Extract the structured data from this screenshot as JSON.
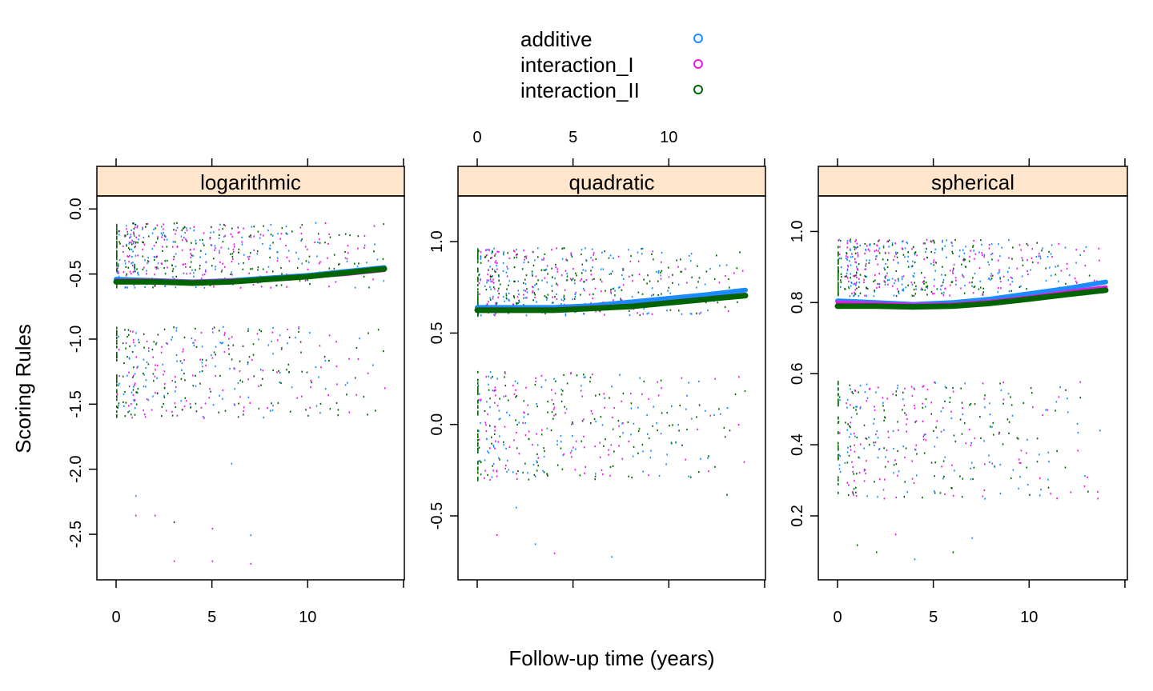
{
  "chart_data": {
    "type": "scatter",
    "layout": "faceted-3-panels",
    "xlabel": "Follow-up time (years)",
    "ylabel": "Scoring Rules",
    "xlim": [
      0,
      14
    ],
    "x_ticks": [
      0,
      5,
      10
    ],
    "x_tick_labels": [
      "0",
      "5",
      "10"
    ],
    "legend": {
      "placement": "top-center",
      "entries": [
        {
          "name": "additive",
          "color": "#1a8cff"
        },
        {
          "name": "interaction_I",
          "color": "#e619e6"
        },
        {
          "name": "interaction_II",
          "color": "#006400"
        }
      ]
    },
    "panels": [
      {
        "label": "logarithmic",
        "ylim": [
          -2.85,
          0.1
        ],
        "y_ticks": [
          0.0,
          -0.5,
          -1.0,
          -1.5,
          -2.0,
          -2.5
        ],
        "y_tick_labels": [
          "0.0",
          "-0.5",
          "-1.0",
          "-1.5",
          "-2.0",
          "-2.5"
        ],
        "point_clusters": [
          {
            "y_range": [
              -0.6,
              -0.1
            ],
            "density": 1.0
          },
          {
            "y_range": [
              -1.6,
              -0.9
            ],
            "density": 0.7
          }
        ],
        "outliers": [
          [
            1,
            -2.2
          ],
          [
            2,
            -2.35
          ],
          [
            3,
            -2.4
          ],
          [
            5,
            -2.45
          ],
          [
            7,
            -2.5
          ],
          [
            3,
            -2.7
          ],
          [
            5,
            -2.7
          ],
          [
            7,
            -2.72
          ],
          [
            1,
            -2.35
          ],
          [
            6,
            -1.95
          ]
        ],
        "series": [
          {
            "name": "additive",
            "x": [
              0,
              2,
              4,
              6,
              8,
              10,
              12,
              14
            ],
            "values": [
              -0.54,
              -0.55,
              -0.56,
              -0.55,
              -0.53,
              -0.51,
              -0.48,
              -0.45
            ]
          },
          {
            "name": "interaction_I",
            "x": [
              0,
              2,
              4,
              6,
              8,
              10,
              12,
              14
            ],
            "values": [
              -0.55,
              -0.55,
              -0.56,
              -0.55,
              -0.54,
              -0.52,
              -0.5,
              -0.47
            ]
          },
          {
            "name": "interaction_II",
            "x": [
              0,
              2,
              4,
              6,
              8,
              10,
              12,
              14
            ],
            "values": [
              -0.56,
              -0.56,
              -0.57,
              -0.56,
              -0.54,
              -0.52,
              -0.49,
              -0.46
            ]
          }
        ]
      },
      {
        "label": "quadratic",
        "ylim": [
          -0.85,
          1.25
        ],
        "y_ticks": [
          1.0,
          0.5,
          0.0,
          -0.5
        ],
        "y_tick_labels": [
          "1.0",
          "0.5",
          "0.0",
          "-0.5"
        ],
        "point_clusters": [
          {
            "y_range": [
              0.6,
              0.97
            ],
            "density": 1.0
          },
          {
            "y_range": [
              -0.3,
              0.3
            ],
            "density": 0.7
          }
        ],
        "outliers": [
          [
            1,
            -0.6
          ],
          [
            3,
            -0.65
          ],
          [
            4,
            -0.7
          ],
          [
            7,
            -0.72
          ],
          [
            2,
            -0.45
          ],
          [
            11,
            -0.28
          ],
          [
            13,
            -0.38
          ]
        ],
        "series": [
          {
            "name": "additive",
            "x": [
              0,
              2,
              4,
              6,
              8,
              10,
              12,
              14
            ],
            "values": [
              0.64,
              0.64,
              0.64,
              0.65,
              0.67,
              0.69,
              0.71,
              0.735
            ]
          },
          {
            "name": "interaction_I",
            "x": [
              0,
              2,
              4,
              6,
              8,
              10,
              12,
              14
            ],
            "values": [
              0.63,
              0.63,
              0.63,
              0.64,
              0.65,
              0.67,
              0.69,
              0.71
            ]
          },
          {
            "name": "interaction_II",
            "x": [
              0,
              2,
              4,
              6,
              8,
              10,
              12,
              14
            ],
            "values": [
              0.625,
              0.625,
              0.625,
              0.635,
              0.645,
              0.665,
              0.685,
              0.705
            ]
          }
        ]
      },
      {
        "label": "spherical",
        "ylim": [
          0.02,
          1.1
        ],
        "y_ticks": [
          1.0,
          0.8,
          0.6,
          0.4,
          0.2
        ],
        "y_tick_labels": [
          "1.0",
          "0.8",
          "0.6",
          "0.4",
          "0.2"
        ],
        "point_clusters": [
          {
            "y_range": [
              0.82,
              0.98
            ],
            "density": 1.0
          },
          {
            "y_range": [
              0.25,
              0.58
            ],
            "density": 0.7
          }
        ],
        "outliers": [
          [
            1,
            0.12
          ],
          [
            2,
            0.1
          ],
          [
            4,
            0.08
          ],
          [
            6,
            0.1
          ],
          [
            3,
            0.15
          ],
          [
            7,
            0.14
          ]
        ],
        "series": [
          {
            "name": "additive",
            "x": [
              0,
              2,
              4,
              6,
              8,
              10,
              12,
              14
            ],
            "values": [
              0.805,
              0.8,
              0.795,
              0.8,
              0.81,
              0.825,
              0.84,
              0.858
            ]
          },
          {
            "name": "interaction_I",
            "x": [
              0,
              2,
              4,
              6,
              8,
              10,
              12,
              14
            ],
            "values": [
              0.8,
              0.797,
              0.793,
              0.795,
              0.803,
              0.815,
              0.83,
              0.843
            ]
          },
          {
            "name": "interaction_II",
            "x": [
              0,
              2,
              4,
              6,
              8,
              10,
              12,
              14
            ],
            "values": [
              0.79,
              0.79,
              0.788,
              0.79,
              0.798,
              0.81,
              0.823,
              0.835
            ]
          }
        ]
      }
    ]
  },
  "colors": {
    "strip_background": "#ffe5cc",
    "additive": "#1a8cff",
    "interaction_I": "#e619e6",
    "interaction_II": "#006400"
  }
}
